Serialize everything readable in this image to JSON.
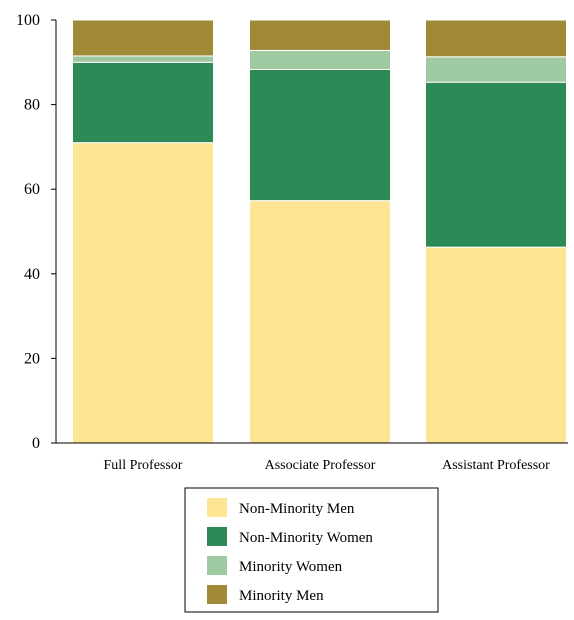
{
  "colors": {
    "non_minority_men": "#fde593",
    "non_minority_women": "#2d8a56",
    "minority_women": "#9fc9a0",
    "minority_men": "#a08a37",
    "axis": "#000000",
    "background": "#ffffff"
  },
  "chart_data": {
    "type": "bar",
    "stacked": true,
    "title": "",
    "xlabel": "",
    "ylabel": "",
    "ylim": [
      0,
      100
    ],
    "yticks": [
      0,
      20,
      40,
      60,
      80,
      100
    ],
    "categories": [
      "Full Professor",
      "Associate Professor",
      "Assistant Professor"
    ],
    "series": [
      {
        "name": "Non-Minority Men",
        "color": "#fde593",
        "values": [
          71,
          57.3,
          46.3
        ]
      },
      {
        "name": "Non-Minority Women",
        "color": "#2d8a56",
        "values": [
          19,
          31,
          39
        ]
      },
      {
        "name": "Minority Women",
        "color": "#9fc9a0",
        "values": [
          1.5,
          4.5,
          6
        ]
      },
      {
        "name": "Minority Men",
        "color": "#a08a37",
        "values": [
          8.5,
          7.2,
          8.7
        ]
      }
    ],
    "legend": {
      "placement": "bottom-center",
      "order": [
        "Non-Minority Men",
        "Non-Minority Women",
        "Minority Women",
        "Minority Men"
      ]
    },
    "grid": false
  }
}
